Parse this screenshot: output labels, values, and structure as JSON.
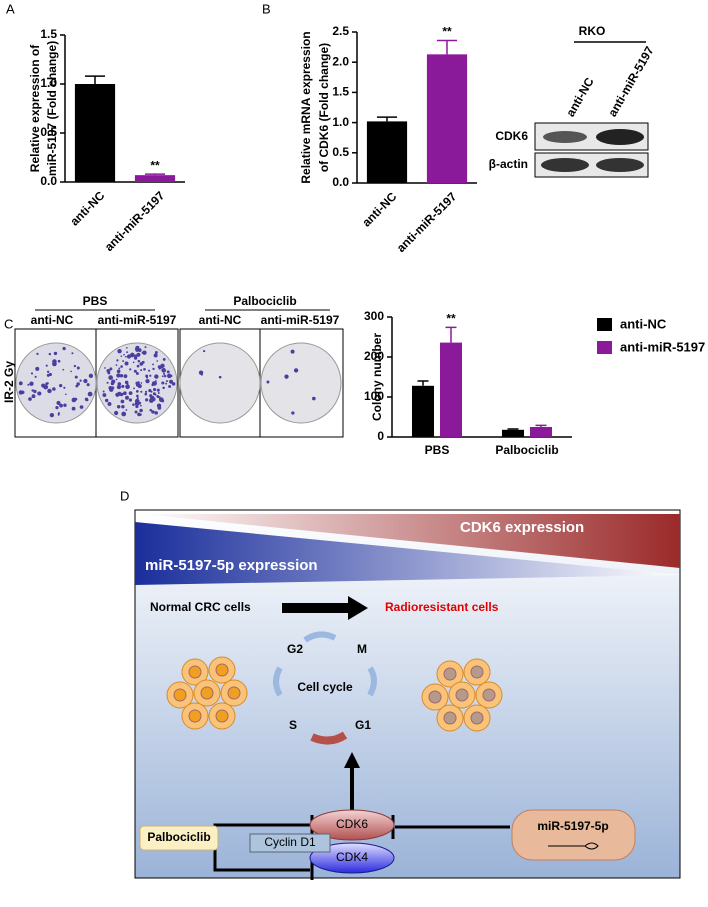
{
  "panels": [
    "A",
    "B",
    "C",
    "D"
  ],
  "chart_data": [
    {
      "type": "bar",
      "ylabel": [
        "Relative expression of",
        "miR-5197 (Fold change)"
      ],
      "categories": [
        "anti-NC",
        "anti-miR-5197"
      ],
      "values": [
        1.0,
        0.07
      ],
      "errors": [
        0.08,
        0.01
      ],
      "colors": [
        "#000000",
        "#8b1a9b"
      ],
      "ylim": [
        0,
        1.5
      ],
      "yticks": [
        {
          "value": 0,
          "label": "0.0"
        },
        {
          "value": 0.5,
          "label": "0.5"
        },
        {
          "value": 1,
          "label": "1.0"
        },
        {
          "value": 1.5,
          "label": "1.5"
        }
      ],
      "annotation": "**"
    },
    {
      "type": "bar",
      "ylabel": [
        "Relative mRNA expression",
        "of CDK6 (Fold change)"
      ],
      "categories": [
        "anti-NC",
        "anti-miR-5197"
      ],
      "values": [
        1.02,
        2.13
      ],
      "errors": [
        0.07,
        0.23
      ],
      "colors": [
        "#000000",
        "#8b1a9b"
      ],
      "ylim": [
        0,
        2.5
      ],
      "yticks": [
        {
          "value": 0,
          "label": "0.0"
        },
        {
          "value": 0.5,
          "label": "0.5"
        },
        {
          "value": 1,
          "label": "1.0"
        },
        {
          "value": 1.5,
          "label": "1.5"
        },
        {
          "value": 2,
          "label": "2.0"
        },
        {
          "value": 2.5,
          "label": "2.5"
        }
      ],
      "annotation": "**"
    },
    {
      "type": "grouped-bar",
      "ylabel": [
        "Colony number"
      ],
      "categories": [
        "PBS",
        "Palbociclib"
      ],
      "series": [
        {
          "name": "anti-NC",
          "color": "#000000",
          "values": [
            128,
            18
          ],
          "errors": [
            12,
            2
          ]
        },
        {
          "name": "anti-miR-5197",
          "color": "#8b1a9b",
          "values": [
            236,
            25
          ],
          "errors": [
            38,
            4
          ]
        }
      ],
      "ylim": [
        0,
        300
      ],
      "yticks": [
        0,
        100,
        200,
        300
      ],
      "annotation": "**",
      "legend": "right"
    }
  ],
  "blot": {
    "cell_line": "RKO",
    "lanes": [
      "anti-NC",
      "anti-miR-5197"
    ],
    "rows": [
      "CDK6",
      "β-actin"
    ]
  },
  "colony": {
    "groups": [
      "PBS",
      "Palbociclib"
    ],
    "lanes": [
      "anti-NC",
      "anti-miR-5197",
      "anti-NC",
      "anti-miR-5197"
    ],
    "row": "IR-2 Gy"
  },
  "diagram": {
    "top": "CDK6 expression",
    "bottom": "miR-5197-5p expression",
    "from": "Normal CRC cells",
    "to": "Radioresistant cells",
    "phases": [
      "G2",
      "M",
      "G1",
      "S"
    ],
    "center": "Cell cycle",
    "cdk6": "CDK6",
    "cyclin": "Cyclin D1",
    "cdk4": "CDK4",
    "drug": "Palbociclib",
    "mirna": "miR-5197-5p"
  }
}
